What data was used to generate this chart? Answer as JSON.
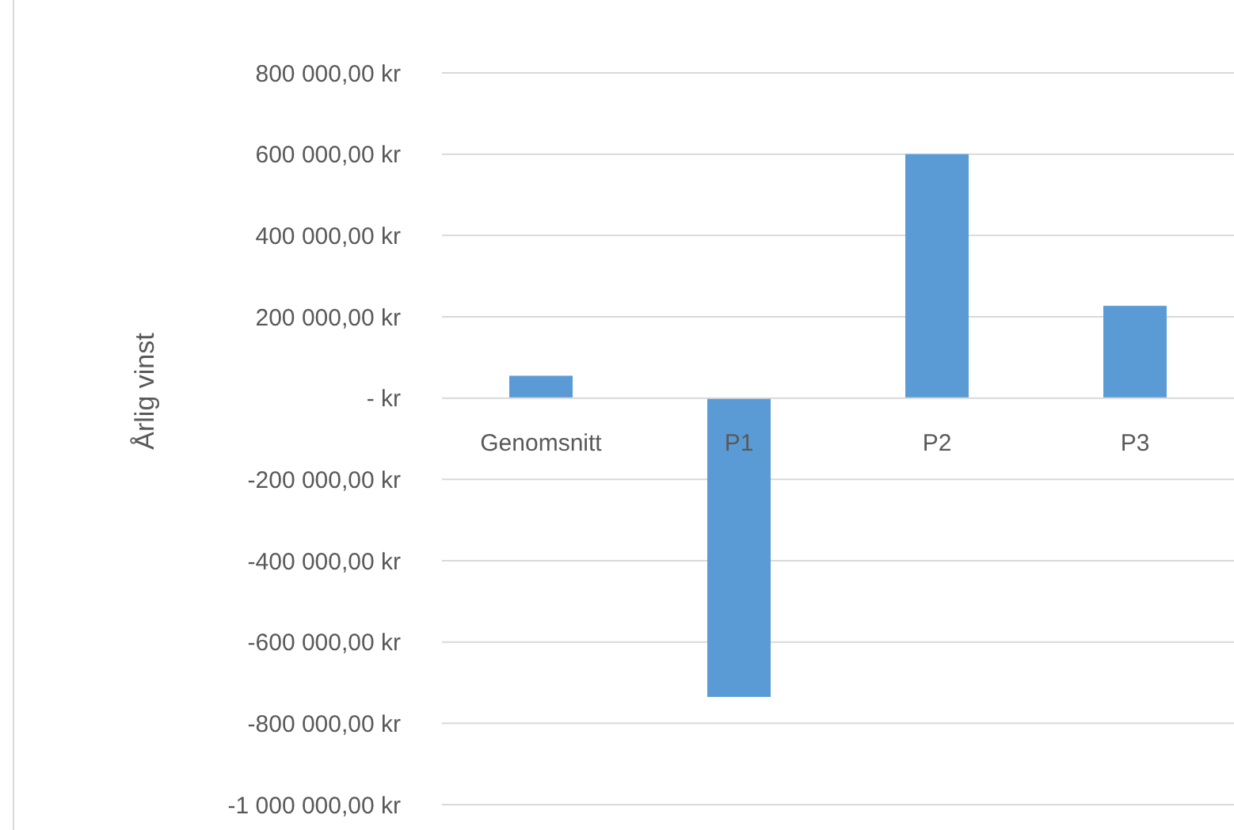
{
  "chart_data": {
    "type": "bar",
    "ylabel": "Årlig vinst",
    "categories": [
      "Genomsnitt",
      "P1",
      "P2",
      "P3"
    ],
    "values": [
      55000,
      -735000,
      600000,
      227000
    ],
    "color": "#5b9bd5",
    "ylim": [
      -1000000,
      800000
    ],
    "yticks": [
      {
        "value": -1000000,
        "label": "-1 000 000,00 kr"
      },
      {
        "value": -800000,
        "label": "-800 000,00 kr"
      },
      {
        "value": -600000,
        "label": "-600 000,00 kr"
      },
      {
        "value": -400000,
        "label": "-400 000,00 kr"
      },
      {
        "value": -200000,
        "label": "-200 000,00 kr"
      },
      {
        "value": 0,
        "label": "-   kr"
      },
      {
        "value": 200000,
        "label": "200 000,00 kr"
      },
      {
        "value": 400000,
        "label": "400 000,00 kr"
      },
      {
        "value": 600000,
        "label": "600 000,00 kr"
      },
      {
        "value": 800000,
        "label": "800 000,00 kr"
      }
    ],
    "grid": "y"
  }
}
